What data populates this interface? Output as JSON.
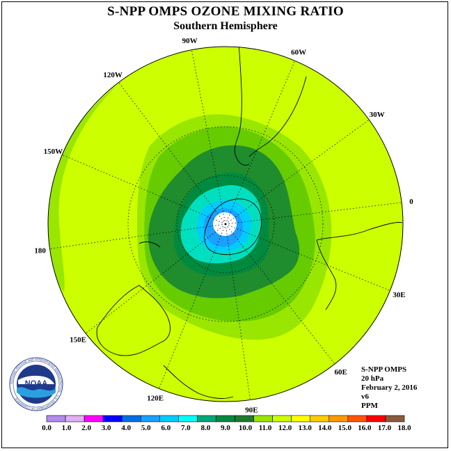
{
  "header": {
    "title": "S-NPP OMPS OZONE MIXING RATIO",
    "subtitle": "Southern Hemisphere"
  },
  "map": {
    "projection": "south polar stereographic",
    "longitude_labels": [
      "90W",
      "60W",
      "30W",
      "0",
      "30E",
      "60E",
      "90E",
      "120E",
      "150E",
      "180",
      "150W",
      "120W"
    ],
    "colors": {
      "background_field": "#ccff00",
      "band_11_12": "#99e600",
      "band_10_11": "#66cc00",
      "band_9_10": "#1f8c2e",
      "band_8_9": "#008a3f",
      "band_7_8": "#00e0c0",
      "band_6_7": "#00ccff",
      "band_5_6": "#1aa0ff",
      "core": "#ffffff"
    }
  },
  "info": {
    "instrument": "S-NPP OMPS",
    "level": "20 hPa",
    "date": "February 2, 2016",
    "version": "v6",
    "units": "PPM"
  },
  "colorbar": {
    "labels": [
      "0.0",
      "1.0",
      "2.0",
      "3.0",
      "4.0",
      "5.0",
      "6.0",
      "7.0",
      "8.0",
      "9.0",
      "10.0",
      "11.0",
      "12.0",
      "13.0",
      "14.0",
      "15.0",
      "16.0",
      "17.0",
      "18.0"
    ],
    "colors": [
      "#b28cf0",
      "#e0b0f0",
      "#ff00ff",
      "#0000ff",
      "#0070e0",
      "#1aa0ff",
      "#00ccff",
      "#00ffff",
      "#00a878",
      "#008a3f",
      "#1f7a2e",
      "#99e600",
      "#ccff00",
      "#ffff00",
      "#ffcc00",
      "#ff9900",
      "#ff5500",
      "#ff0000",
      "#8b5a3c"
    ]
  },
  "logo": {
    "text": "NOAA",
    "ring_text": "NATIONAL OCEANIC AND ATMOSPHERIC ADMINISTRATION · U.S. DEPARTMENT OF COMMERCE"
  }
}
